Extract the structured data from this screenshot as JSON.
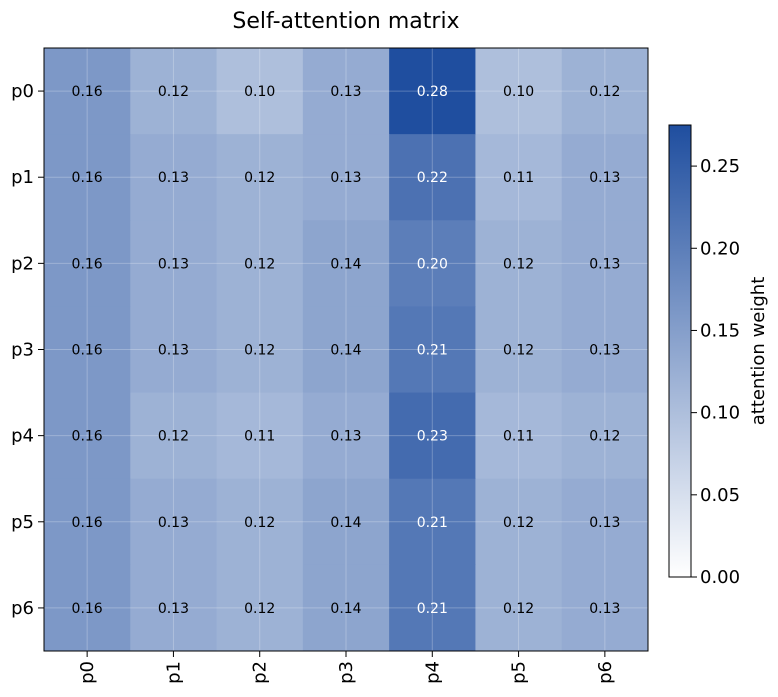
{
  "chart_data": {
    "type": "heatmap",
    "title": "Self-attention matrix",
    "rows": [
      "p0",
      "p1",
      "p2",
      "p3",
      "p4",
      "p5",
      "p6"
    ],
    "columns": [
      "p0",
      "p1",
      "p2",
      "p3",
      "p4",
      "p5",
      "p6"
    ],
    "values": [
      [
        0.16,
        0.12,
        0.1,
        0.13,
        0.28,
        0.1,
        0.12
      ],
      [
        0.16,
        0.13,
        0.12,
        0.13,
        0.22,
        0.11,
        0.13
      ],
      [
        0.16,
        0.13,
        0.12,
        0.14,
        0.2,
        0.12,
        0.13
      ],
      [
        0.16,
        0.13,
        0.12,
        0.14,
        0.21,
        0.12,
        0.13
      ],
      [
        0.16,
        0.12,
        0.11,
        0.13,
        0.23,
        0.11,
        0.12
      ],
      [
        0.16,
        0.13,
        0.12,
        0.14,
        0.21,
        0.12,
        0.13
      ],
      [
        0.16,
        0.13,
        0.12,
        0.14,
        0.21,
        0.12,
        0.13
      ]
    ],
    "colorbar": {
      "label": "attention weight",
      "range": [
        0.0,
        0.275
      ],
      "ticks": [
        0.0,
        0.05,
        0.1,
        0.15,
        0.2,
        0.25
      ],
      "tick_labels": [
        "0.00",
        "0.05",
        "0.10",
        "0.15",
        "0.20",
        "0.25"
      ]
    },
    "colormap": [
      "#ffffff",
      "#1f4e9f"
    ],
    "grid": true
  }
}
